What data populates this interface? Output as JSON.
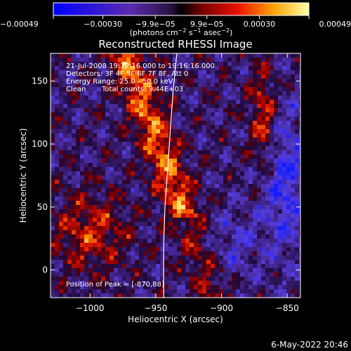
{
  "chart_data": {
    "type": "heatmap",
    "title": "Reconstructed RHESSI Image",
    "xlabel": "Heliocentric X (arcsec)",
    "ylabel": "Heliocentric Y (arcsec)",
    "xlim": [
      -1030,
      -840
    ],
    "ylim": [
      -22,
      172
    ],
    "x_ticks": [
      -1000,
      -950,
      -900,
      -850
    ],
    "x_tick_labels": [
      "−1000",
      "−950",
      "−900",
      "−850"
    ],
    "y_ticks": [
      0,
      50,
      100,
      150
    ],
    "y_tick_labels": [
      "0",
      "50",
      "100",
      "150"
    ],
    "colorbar": {
      "min": -0.00049,
      "max": 0.00049,
      "ticks": [
        -0.00049,
        -0.0003,
        -9.9e-05,
        9.9e-05,
        0.0003,
        0.00049
      ],
      "tick_labels": [
        "−0.00049",
        "−0.00030",
        "−9.9e−05",
        "9.9e−05",
        "0.00030",
        "0.00049"
      ],
      "unit_parts": [
        "(photons cm",
        "−2",
        " s",
        "−1",
        " asec",
        "−2",
        ")"
      ]
    },
    "annotations": {
      "time_range": "21-Jul-2008 19:12:16.000 to 19:16:16.000",
      "detectors": "Detectors: 3F 4F 5F 6F 7F 8F, Att 0",
      "energy_range": "Energy Range: 25.0 - 50.0 keV",
      "method": "Clean",
      "total_counts": "Total counts: 9.44E+03",
      "peak_position": "Position of Peak = [-870,88]"
    },
    "limb_curve": [
      [
        -944,
        -22
      ],
      [
        -944,
        20
      ],
      [
        -943,
        50
      ],
      [
        -941,
        80
      ],
      [
        -939,
        110
      ],
      [
        -937,
        140
      ],
      [
        -934,
        172
      ]
    ],
    "grid": false
  },
  "footer": {
    "datetime": "6-May-2022 20:46"
  }
}
